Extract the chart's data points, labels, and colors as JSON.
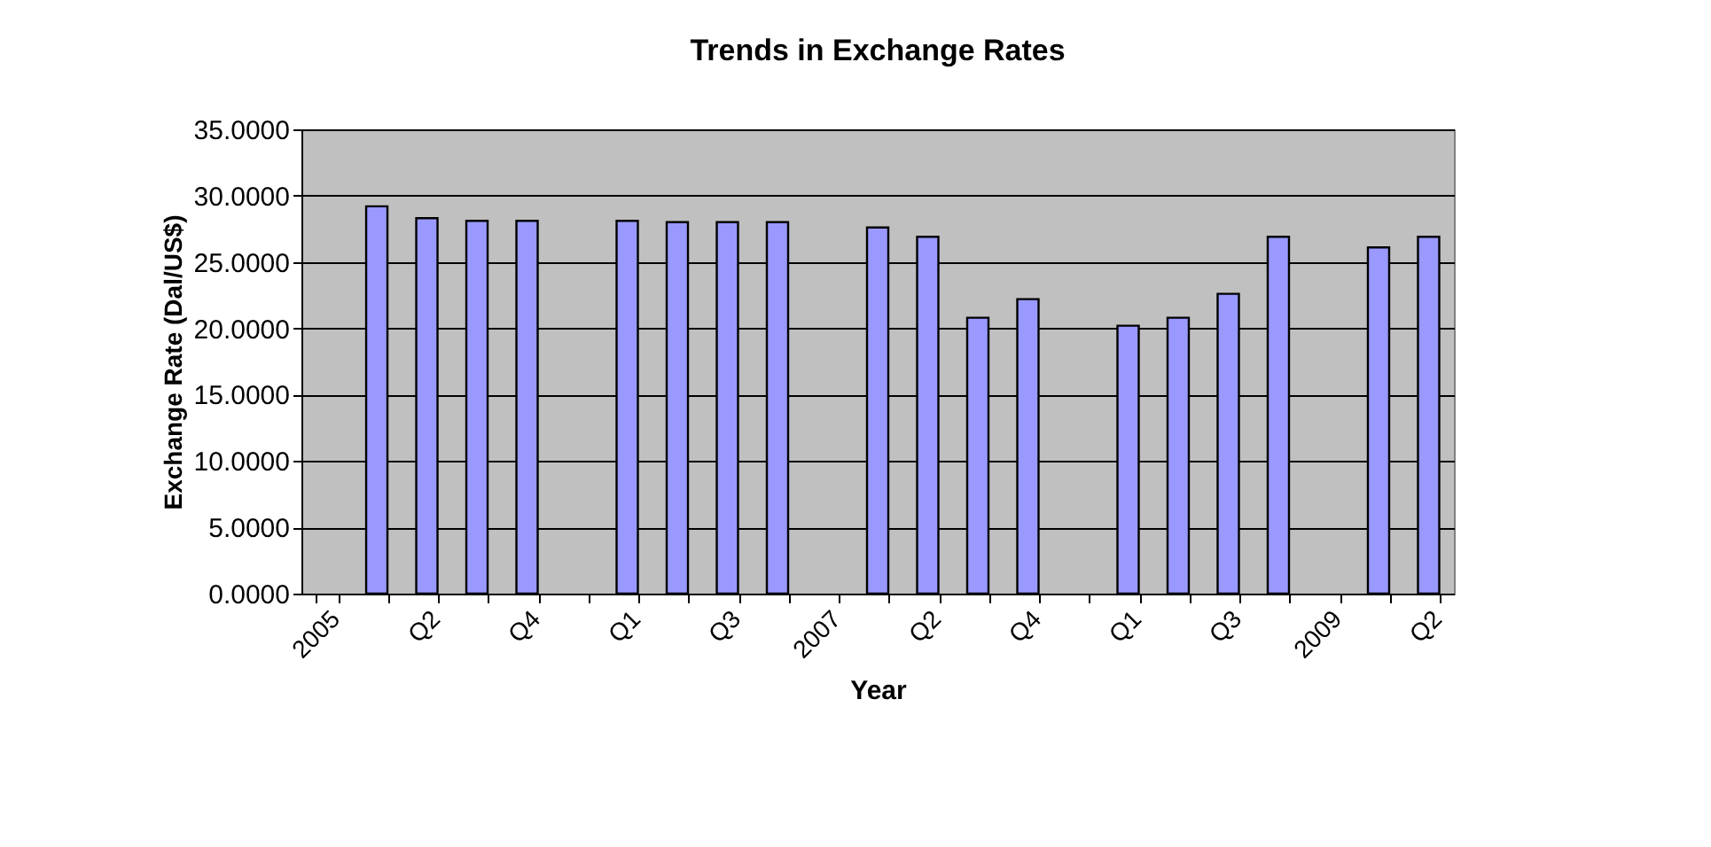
{
  "chart_data": {
    "type": "bar",
    "title": "Trends in Exchange Rates",
    "xlabel": "Year",
    "ylabel": "Exchange Rate (Dal/US$)",
    "categories": [
      "2005",
      null,
      "Q2",
      null,
      "Q4",
      null,
      "Q1",
      null,
      "Q3",
      null,
      "2007",
      null,
      "Q2",
      null,
      "Q4",
      null,
      "Q1",
      null,
      "Q3",
      null,
      "2009",
      null,
      "Q2"
    ],
    "values": [
      null,
      29.2,
      28.3,
      28.1,
      28.1,
      null,
      28.1,
      28.0,
      28.0,
      28.0,
      null,
      27.6,
      26.9,
      20.8,
      22.2,
      null,
      20.2,
      20.8,
      22.6,
      26.9,
      null,
      26.1,
      26.9
    ],
    "color": "#9999ff",
    "ylim": [
      0,
      35
    ],
    "yticks": [
      {
        "value": 0,
        "label": "0.0000"
      },
      {
        "value": 5,
        "label": "5.0000"
      },
      {
        "value": 10,
        "label": "10.0000"
      },
      {
        "value": 15,
        "label": "15.0000"
      },
      {
        "value": 20,
        "label": "20.0000"
      },
      {
        "value": 25,
        "label": "25.0000"
      },
      {
        "value": 30,
        "label": "30.0000"
      },
      {
        "value": 35,
        "label": "35.0000"
      }
    ],
    "grid": "y"
  }
}
